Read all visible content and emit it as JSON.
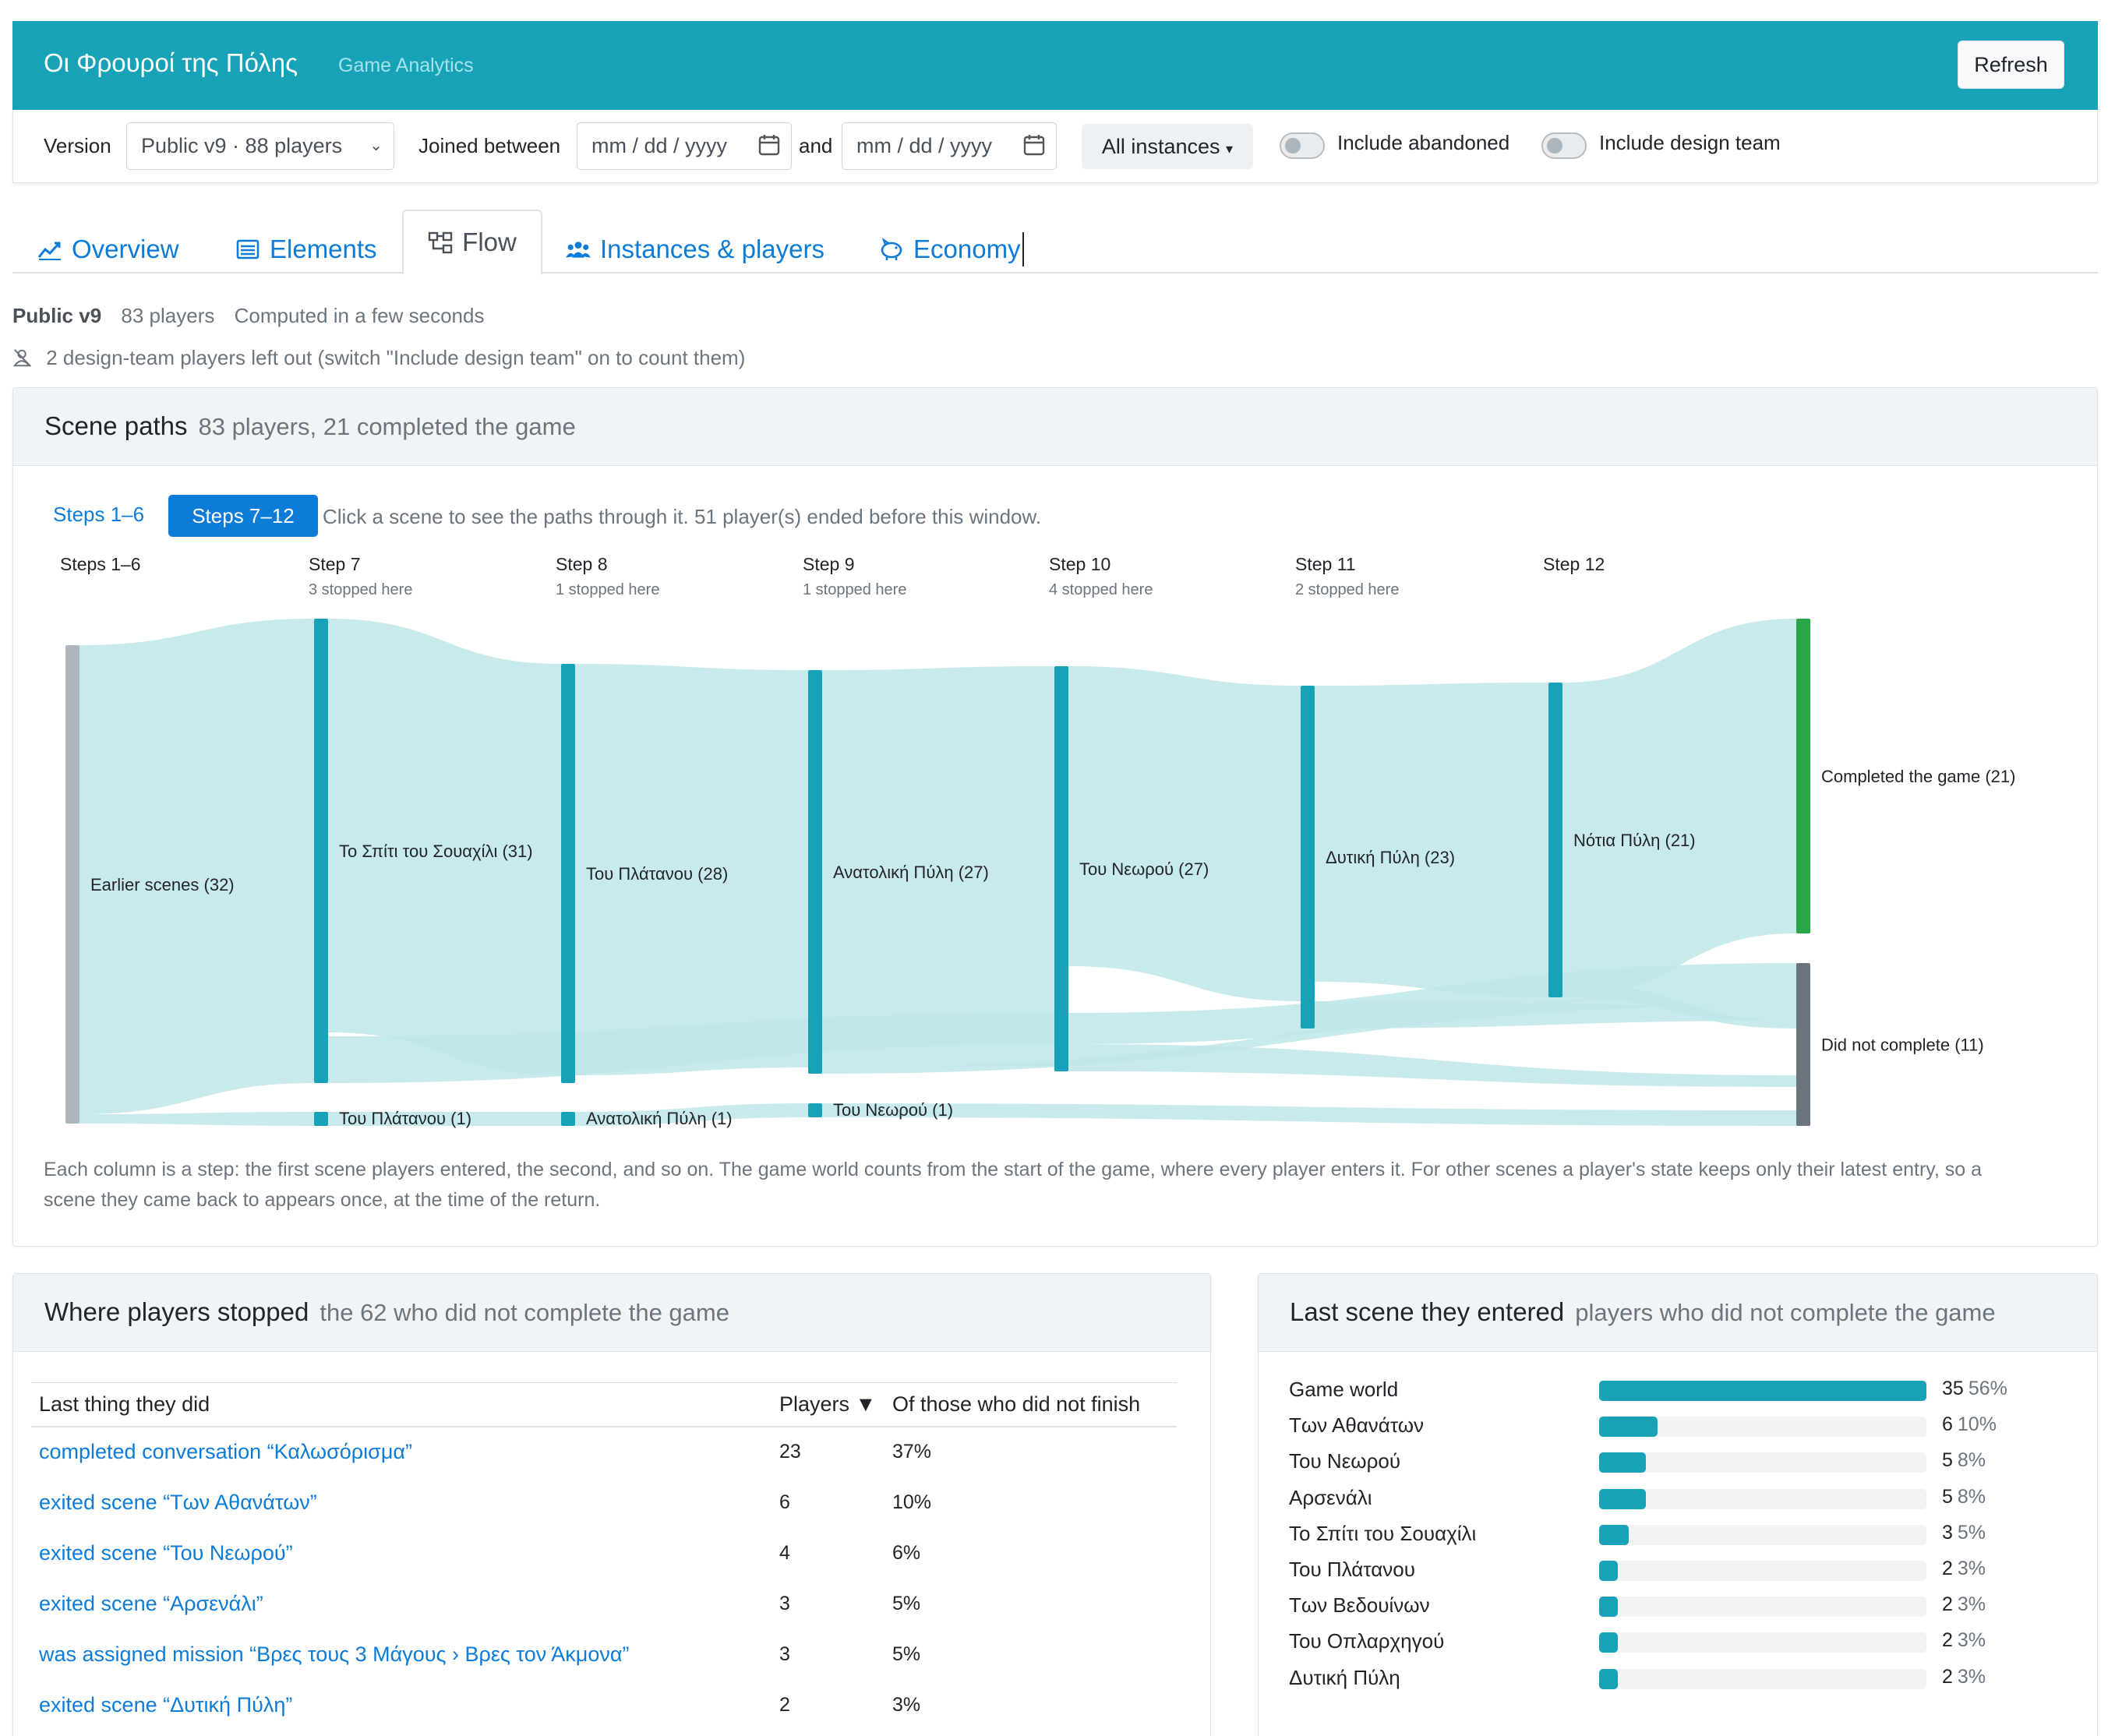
{
  "header": {
    "title": "Οι Φρουροί της Πόλης",
    "subtitle": "Game Analytics",
    "refresh_label": "Refresh"
  },
  "filters": {
    "version_label": "Version",
    "version_value": "Public v9 · 88 players",
    "joined_label": "Joined between",
    "date_from_placeholder": "mm / dd / yyyy",
    "and_label": "and",
    "date_to_placeholder": "mm / dd / yyyy",
    "instances_label": "All instances",
    "toggle_abandoned_label": "Include abandoned",
    "toggle_design_label": "Include design team",
    "toggle_abandoned_on": false,
    "toggle_design_on": false
  },
  "tabs": [
    {
      "label": "Overview",
      "icon": "chart-line-icon",
      "active": false
    },
    {
      "label": "Elements",
      "icon": "list-icon",
      "active": false
    },
    {
      "label": "Flow",
      "icon": "flow-diagram-icon",
      "active": true
    },
    {
      "label": "Instances & players",
      "icon": "users-icon",
      "active": false
    },
    {
      "label": "Economy",
      "icon": "piggy-bank-icon",
      "active": false
    }
  ],
  "meta": {
    "version": "Public v9",
    "players": "83 players",
    "computed": "Computed in a few seconds",
    "excluded_note": "2 design-team players left out (switch \"Include design team\" on to count them)"
  },
  "scene_paths": {
    "title": "Scene paths",
    "subtitle": "83 players, 21 completed the game",
    "steps_btn_1": "Steps 1–6",
    "steps_btn_2": "Steps 7–12",
    "hint": "Click a scene to see the paths through it. 51 player(s) ended before this window.",
    "footnote": "Each column is a step: the first scene players entered, the second, and so on. The game world counts from the start of the game, where every player enters it. For other scenes a player's state keeps only their latest entry, so a scene they came back to appears once, at the time of the return.",
    "columns": [
      {
        "title": "Steps 1–6",
        "stopped": ""
      },
      {
        "title": "Step 7",
        "stopped": "3 stopped here"
      },
      {
        "title": "Step 8",
        "stopped": "1 stopped here"
      },
      {
        "title": "Step 9",
        "stopped": "1 stopped here"
      },
      {
        "title": "Step 10",
        "stopped": "4 stopped here"
      },
      {
        "title": "Step 11",
        "stopped": "2 stopped here"
      },
      {
        "title": "Step 12",
        "stopped": ""
      }
    ],
    "nodes": [
      {
        "label": "Earlier scenes (32)",
        "value": 32
      },
      {
        "label": "Το Σπίτι του Σουαχίλι (31)",
        "value": 31
      },
      {
        "label": "Του Πλάτανου (1)",
        "value": 1
      },
      {
        "label": "Του Πλάτανου (28)",
        "value": 28
      },
      {
        "label": "Ανατολική Πύλη (1)",
        "value": 1
      },
      {
        "label": "Ανατολική Πύλη (27)",
        "value": 27
      },
      {
        "label": "Του Νεωρού (1)",
        "value": 1
      },
      {
        "label": "Του Νεωρού (27)",
        "value": 27
      },
      {
        "label": "Δυτική Πύλη (23)",
        "value": 23
      },
      {
        "label": "Νότια Πύλη (21)",
        "value": 21
      },
      {
        "label": "Completed the game (21)",
        "value": 21
      },
      {
        "label": "Did not complete (11)",
        "value": 11
      }
    ],
    "colors": {
      "node": "#17a2b8",
      "earlier": "#adb5bd",
      "completed": "#28a745",
      "not_completed": "#6c757d",
      "link": "#bfe6ea"
    }
  },
  "stopped": {
    "title": "Where players stopped",
    "subtitle": "the 62 who did not complete the game",
    "columns": [
      "Last thing they did",
      "Players ▼",
      "Of those who did not finish"
    ],
    "rows": [
      {
        "what": "completed conversation “Καλωσόρισμα”",
        "players": "23",
        "pct": "37%"
      },
      {
        "what": "exited scene “Των Αθανάτων”",
        "players": "6",
        "pct": "10%"
      },
      {
        "what": "exited scene “Του Νεωρού”",
        "players": "4",
        "pct": "6%"
      },
      {
        "what": "exited scene “Αρσενάλι”",
        "players": "3",
        "pct": "5%"
      },
      {
        "what": "was assigned mission “Βρες τους 3 Μάγους › Βρες τον Άκμονα”",
        "players": "3",
        "pct": "5%"
      },
      {
        "what": "exited scene “Δυτική Πύλη”",
        "players": "2",
        "pct": "3%"
      }
    ]
  },
  "last_scene": {
    "title": "Last scene they entered",
    "subtitle": "players who did not complete the game",
    "rows": [
      {
        "label": "Game world",
        "count": "35",
        "pct": "56%",
        "fraction": 0.56
      },
      {
        "label": "Των Αθανάτων",
        "count": "6",
        "pct": "10%",
        "fraction": 0.1
      },
      {
        "label": "Του Νεωρού",
        "count": "5",
        "pct": "8%",
        "fraction": 0.08
      },
      {
        "label": "Αρσενάλι",
        "count": "5",
        "pct": "8%",
        "fraction": 0.08
      },
      {
        "label": "Το Σπίτι του Σουαχίλι",
        "count": "3",
        "pct": "5%",
        "fraction": 0.05
      },
      {
        "label": "Του Πλάτανου",
        "count": "2",
        "pct": "3%",
        "fraction": 0.03
      },
      {
        "label": "Των Βεδουίνων",
        "count": "2",
        "pct": "3%",
        "fraction": 0.03
      },
      {
        "label": "Του Οπλαρχηγού",
        "count": "2",
        "pct": "3%",
        "fraction": 0.03
      },
      {
        "label": "Δυτική Πύλη",
        "count": "2",
        "pct": "3%",
        "fraction": 0.03
      }
    ]
  }
}
